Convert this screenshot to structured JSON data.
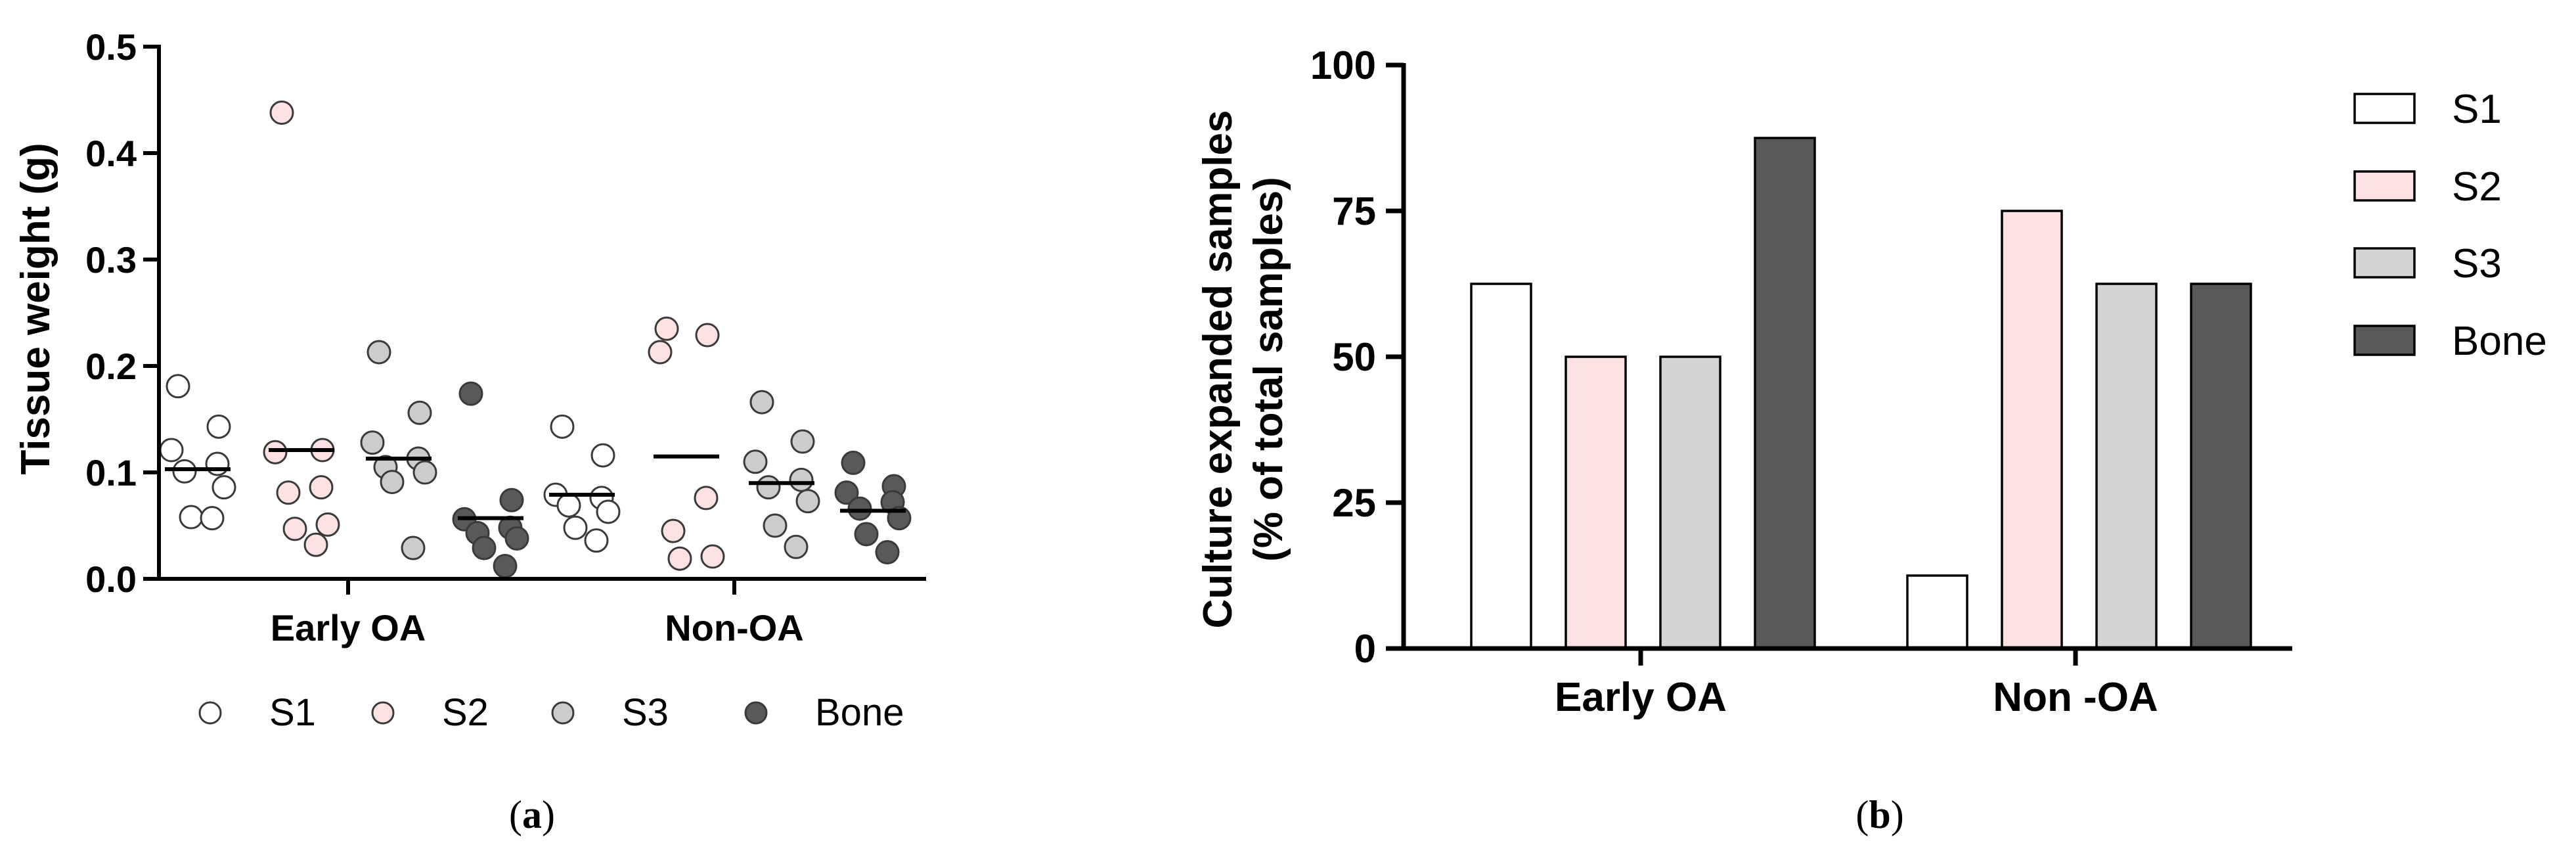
{
  "chart_data": [
    {
      "type": "scatter",
      "panel_label_open": "(",
      "panel_label": "a",
      "panel_label_close": ")",
      "ylabel": "Tissue weight (g)",
      "xlabel": "",
      "ylim": [
        0,
        0.5
      ],
      "yticks": [
        "0.0",
        "0.1",
        "0.2",
        "0.3",
        "0.4",
        "0.5"
      ],
      "ytick_values": [
        0,
        0.1,
        0.2,
        0.3,
        0.4,
        0.5
      ],
      "groups": [
        "Early OA",
        "Non-OA"
      ],
      "legend_position": "bottom",
      "series": [
        {
          "name": "S1",
          "color": "#ffffff",
          "points": [
            [
              0.181,
              0.143,
              0.121,
              0.108,
              0.101,
              0.086,
              0.058,
              0.057
            ],
            [
              0.143,
              0.116,
              0.079,
              0.076,
              0.069,
              0.063,
              0.048,
              0.036
            ]
          ],
          "medians": [
            0.103,
            0.079
          ]
        },
        {
          "name": "S2",
          "color": "#fde2e3",
          "points": [
            [
              0.438,
              0.121,
              0.119,
              0.086,
              0.081,
              0.051,
              0.047,
              0.032
            ],
            [
              0.235,
              0.229,
              0.213,
              0.076,
              0.045,
              0.021,
              0.019
            ]
          ],
          "medians": [
            0.121,
            0.115
          ]
        },
        {
          "name": "S3",
          "color": "#cccccc",
          "points": [
            [
              0.213,
              0.156,
              0.128,
              0.113,
              0.105,
              0.1,
              0.091,
              0.029
            ],
            [
              0.166,
              0.129,
              0.11,
              0.093,
              0.086,
              0.073,
              0.05,
              0.03
            ]
          ],
          "medians": [
            0.113,
            0.09
          ]
        },
        {
          "name": "Bone",
          "color": "#595959",
          "points": [
            [
              0.174,
              0.074,
              0.056,
              0.048,
              0.043,
              0.038,
              0.029,
              0.012
            ],
            [
              0.109,
              0.087,
              0.081,
              0.072,
              0.066,
              0.057,
              0.042,
              0.025
            ]
          ],
          "medians": [
            0.057,
            0.064
          ]
        }
      ]
    },
    {
      "type": "bar",
      "panel_label_open": "(",
      "panel_label": "b",
      "panel_label_close": ")",
      "ylabel_line1": "Culture expanded samples",
      "ylabel_line2": "(% of total samples)",
      "xlabel": "",
      "ylim": [
        0,
        100
      ],
      "yticks": [
        "0",
        "25",
        "50",
        "75",
        "100"
      ],
      "ytick_values": [
        0,
        25,
        50,
        75,
        100
      ],
      "categories": [
        "Early OA",
        "Non -OA"
      ],
      "legend_position": "right",
      "series": [
        {
          "name": "S1",
          "color": "#ffffff",
          "values": [
            62.5,
            12.5
          ]
        },
        {
          "name": "S2",
          "color": "#fde2e3",
          "values": [
            50,
            75
          ]
        },
        {
          "name": "S3",
          "color": "#d4d4d4",
          "values": [
            50,
            62.5
          ]
        },
        {
          "name": "Bone",
          "color": "#595959",
          "values": [
            87.5,
            62.5
          ]
        }
      ]
    }
  ]
}
